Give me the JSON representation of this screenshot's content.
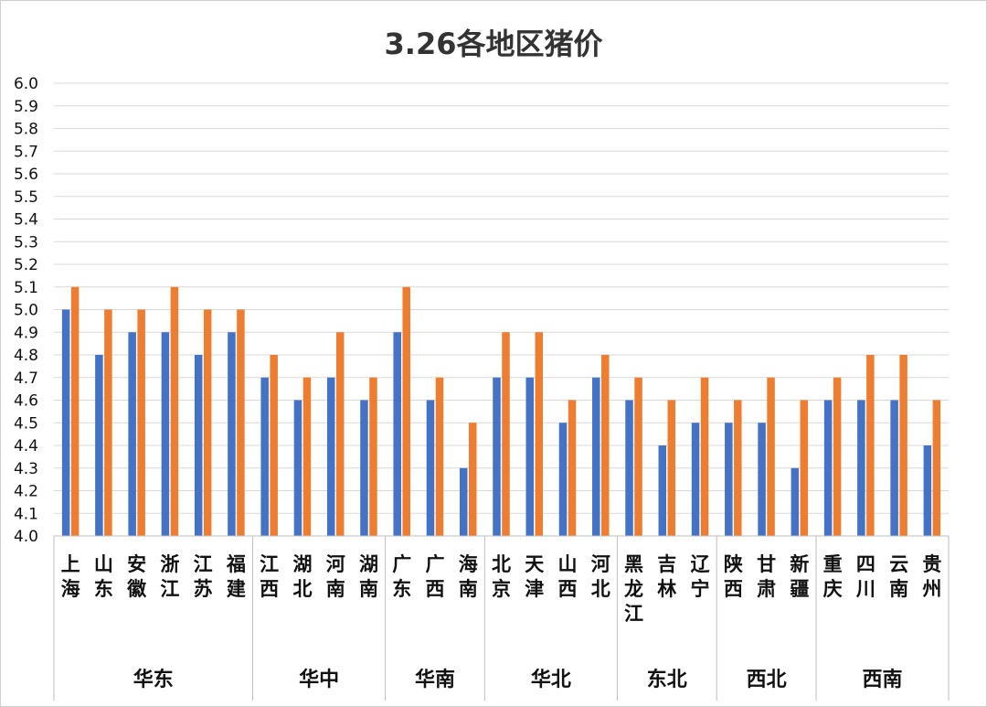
{
  "chart_data": {
    "type": "bar",
    "title": "3.26各地区猪价",
    "xlabel": "",
    "ylabel": "",
    "ylim": [
      4.0,
      6.0
    ],
    "ytick_step": 0.1,
    "grid": true,
    "legend": "none",
    "colors": [
      "#4472C4",
      "#ED7D31"
    ],
    "groups": [
      {
        "name": "华东",
        "provinces": [
          {
            "label": "上海",
            "values": [
              5.0,
              5.1
            ]
          },
          {
            "label": "山东",
            "values": [
              4.8,
              5.0
            ]
          },
          {
            "label": "安徽",
            "values": [
              4.9,
              5.0
            ]
          },
          {
            "label": "浙江",
            "values": [
              4.9,
              5.1
            ]
          },
          {
            "label": "江苏",
            "values": [
              4.8,
              5.0
            ]
          },
          {
            "label": "福建",
            "values": [
              4.9,
              5.0
            ]
          }
        ]
      },
      {
        "name": "华中",
        "provinces": [
          {
            "label": "江西",
            "values": [
              4.7,
              4.8
            ]
          },
          {
            "label": "湖北",
            "values": [
              4.6,
              4.7
            ]
          },
          {
            "label": "河南",
            "values": [
              4.7,
              4.9
            ]
          },
          {
            "label": "湖南",
            "values": [
              4.6,
              4.7
            ]
          }
        ]
      },
      {
        "name": "华南",
        "provinces": [
          {
            "label": "广东",
            "values": [
              4.9,
              5.1
            ]
          },
          {
            "label": "广西",
            "values": [
              4.6,
              4.7
            ]
          },
          {
            "label": "海南",
            "values": [
              4.3,
              4.5
            ]
          }
        ]
      },
      {
        "name": "华北",
        "provinces": [
          {
            "label": "北京",
            "values": [
              4.7,
              4.9
            ]
          },
          {
            "label": "天津",
            "values": [
              4.7,
              4.9
            ]
          },
          {
            "label": "山西",
            "values": [
              4.5,
              4.6
            ]
          },
          {
            "label": "河北",
            "values": [
              4.7,
              4.8
            ]
          }
        ]
      },
      {
        "name": "东北",
        "provinces": [
          {
            "label": "黑龙江",
            "values": [
              4.6,
              4.7
            ]
          },
          {
            "label": "吉林",
            "values": [
              4.4,
              4.6
            ]
          },
          {
            "label": "辽宁",
            "values": [
              4.5,
              4.7
            ]
          }
        ]
      },
      {
        "name": "西北",
        "provinces": [
          {
            "label": "陕西",
            "values": [
              4.5,
              4.6
            ]
          },
          {
            "label": "甘肃",
            "values": [
              4.5,
              4.7
            ]
          },
          {
            "label": "新疆",
            "values": [
              4.3,
              4.6
            ]
          }
        ]
      },
      {
        "name": "西南",
        "provinces": [
          {
            "label": "重庆",
            "values": [
              4.6,
              4.7
            ]
          },
          {
            "label": "四川",
            "values": [
              4.6,
              4.8
            ]
          },
          {
            "label": "云南",
            "values": [
              4.6,
              4.8
            ]
          },
          {
            "label": "贵州",
            "values": [
              4.4,
              4.6
            ]
          }
        ]
      }
    ]
  }
}
